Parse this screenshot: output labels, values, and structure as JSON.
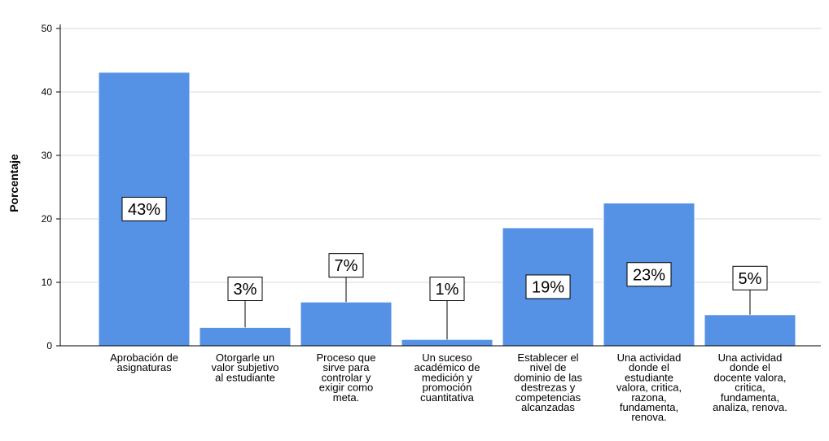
{
  "chart_data": {
    "type": "bar",
    "ylabel": "Porcentaje",
    "ylim": [
      0,
      50
    ],
    "yticks": [
      0,
      10,
      20,
      30,
      40,
      50
    ],
    "grid": true,
    "bar_color": "#5592E6",
    "categories": [
      [
        "Aprobación de",
        "asignaturas"
      ],
      [
        "Otorgarle un",
        "valor subjetivo",
        "al estudiante"
      ],
      [
        "Proceso que",
        "sirve para",
        "controlar y",
        "exigir como",
        "meta."
      ],
      [
        "Un suceso",
        "académico de",
        "medición y",
        "promoción",
        "cuantitativa"
      ],
      [
        "Establecer el",
        "nivel de",
        "dominio de las",
        "destrezas y",
        "competencias",
        "alcanzadas"
      ],
      [
        "Una actividad",
        "donde el",
        "estudiante",
        "valora, critica,",
        "razona,",
        "fundamenta,",
        "renova."
      ],
      [
        "Una actividad",
        "donde el",
        "docente valora,",
        "critica,",
        "fundamenta,",
        "analiza, renova."
      ]
    ],
    "values": [
      43.1,
      2.9,
      6.9,
      1.0,
      18.6,
      22.5,
      4.9
    ],
    "data_labels": [
      "43%",
      "3%",
      "7%",
      "1%",
      "19%",
      "23%",
      "5%"
    ]
  }
}
